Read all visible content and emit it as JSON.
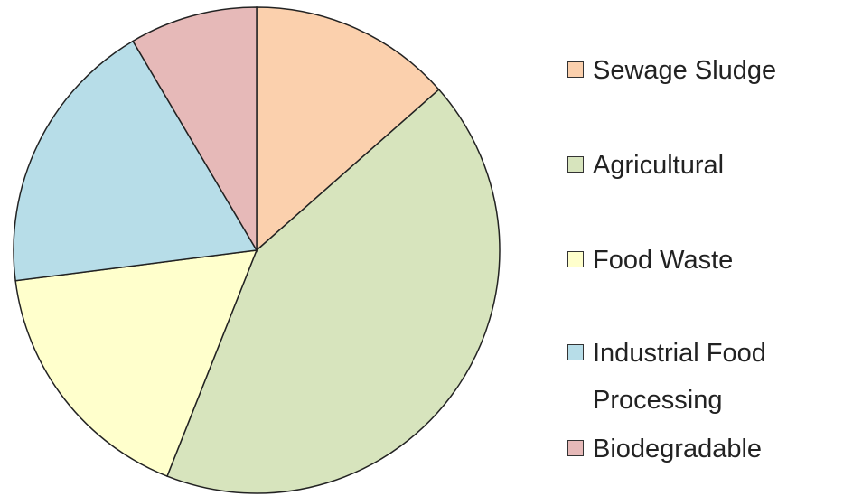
{
  "chart_data": {
    "type": "pie",
    "categories": [
      "Sewage Sludge",
      "Agricultural",
      "Food Waste",
      "Industrial Food Processing",
      "Biodegradable"
    ],
    "values": [
      13.5,
      42.5,
      17,
      18.5,
      8.5
    ],
    "colors": [
      "#fbd0ad",
      "#d7e4bd",
      "#ffffcc",
      "#b7dde8",
      "#e6b9b8"
    ],
    "legend": "right"
  }
}
